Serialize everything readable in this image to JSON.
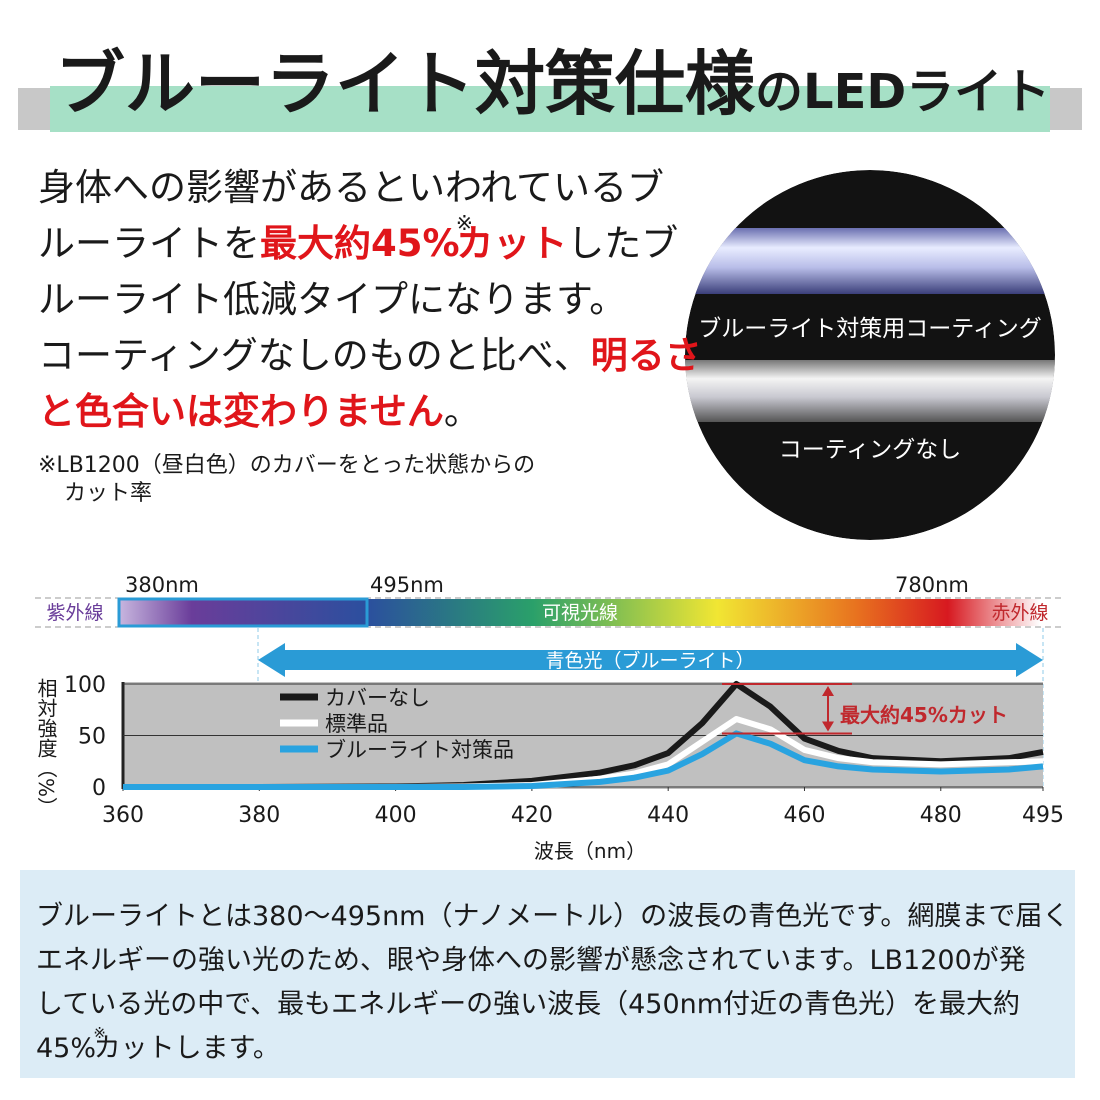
{
  "header": {
    "title": "ブルーライト対策仕様",
    "subtitle": "のLEDライト"
  },
  "intro": {
    "lines": [
      [
        {
          "text": "身体への影響があるといわれているブ"
        }
      ],
      [
        {
          "text": "ルーライトを"
        },
        {
          "text": "最大約45%",
          "emphasis": true
        },
        {
          "text": "※",
          "sup": true
        },
        {
          "text": "カット",
          "emphasis": true
        },
        {
          "text": "したブ"
        }
      ],
      [
        {
          "text": "ルーライト低減タイプになります。"
        }
      ],
      [
        {
          "text": "コーティングなしのものと比べ、"
        },
        {
          "text": "明るさ",
          "emphasis": true
        }
      ],
      [
        {
          "text": "と色合いは変わりません",
          "emphasis": true
        },
        {
          "text": "。"
        }
      ]
    ],
    "note": [
      "※LB1200（昼白色）のカバーをとった状態からの",
      "カット率"
    ]
  },
  "photo": {
    "coated_label": "ブルーライト対策用コーティング",
    "uncoated_label": "コーティングなし"
  },
  "spectrum": {
    "left_label": "紫外線",
    "center_label": "可視光線",
    "right_label": "赤外線",
    "marks": [
      "380nm",
      "495nm",
      "780nm"
    ],
    "band_label": "青色光（ブルーライト）"
  },
  "chart_data": {
    "type": "line",
    "x": [
      360,
      380,
      400,
      410,
      420,
      430,
      435,
      440,
      445,
      450,
      455,
      460,
      465,
      470,
      480,
      490,
      495
    ],
    "series": [
      {
        "name": "カバーなし",
        "color": "#1a1a1a",
        "values": [
          0,
          0,
          0.5,
          2,
          6,
          14,
          21,
          33,
          62,
          100,
          78,
          47,
          35,
          28,
          25,
          28,
          34
        ]
      },
      {
        "name": "標準品",
        "color": "#ffffff",
        "values": [
          0,
          0,
          0,
          0.5,
          2,
          8,
          13,
          22,
          44,
          66,
          56,
          36,
          28,
          24,
          22,
          24,
          25
        ]
      },
      {
        "name": "ブルーライト対策品",
        "color": "#29a3e0",
        "values": [
          0,
          0,
          0,
          0,
          1,
          5,
          9,
          16,
          32,
          52,
          42,
          26,
          20,
          17,
          15,
          17,
          20
        ]
      }
    ],
    "xlim": [
      360,
      495
    ],
    "xticks": [
      360,
      380,
      400,
      420,
      440,
      460,
      480,
      495
    ],
    "ylim": [
      0,
      100
    ],
    "yticks": [
      0,
      50,
      100
    ],
    "grid": true,
    "ylabel": "相対強度（%）",
    "xlabel": "波長（nm）",
    "annotation": "最大約45%カット"
  },
  "footer": {
    "lines": [
      [
        {
          "text": "ブルーライトとは380〜495nm（ナノメートル）の波長の青色光です。網膜まで届く"
        }
      ],
      [
        {
          "text": "エネルギーの強い光のため、眼や身体への影響が懸念されています。LB1200が発"
        }
      ],
      [
        {
          "text": "している光の中で、最もエネルギーの強い波長（450nm付近の青色光）を最大約"
        }
      ],
      [
        {
          "text": "45%"
        },
        {
          "text": "※",
          "sup": true
        },
        {
          "text": "カットします。"
        }
      ]
    ]
  }
}
